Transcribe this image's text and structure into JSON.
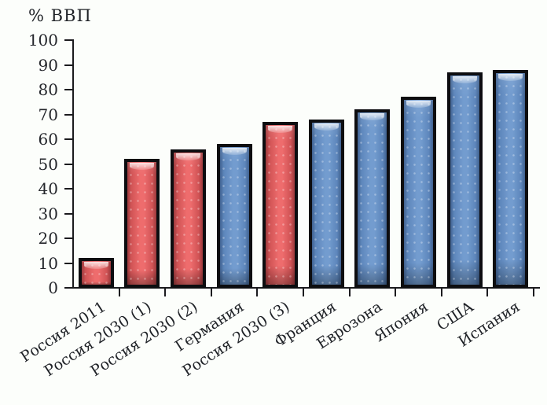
{
  "chart_data": {
    "type": "bar",
    "title": "% ВВП",
    "ylabel": "% ВВП",
    "xlabel": "",
    "categories": [
      "Россия 2011",
      "Россия 2030 (1)",
      "Россия 2030 (2)",
      "Германия",
      "Россия 2030 (3)",
      "Франция",
      "Еврозона",
      "Япония",
      "США",
      "Испания"
    ],
    "values": [
      12,
      52,
      56,
      58,
      67,
      68,
      72,
      77,
      87,
      88
    ],
    "bar_colors": [
      "red",
      "red",
      "red",
      "blue",
      "red",
      "blue",
      "blue",
      "blue",
      "blue",
      "blue"
    ],
    "yticks": [
      0,
      10,
      20,
      30,
      40,
      50,
      60,
      70,
      80,
      90,
      100
    ],
    "ylim": [
      0,
      100
    ],
    "grid": false,
    "legend_position": "none",
    "bar_style": "3d-glossy-beveled",
    "colors": {
      "red": "#e3595b",
      "blue": "#6b94ca",
      "outline": "#0d0d10",
      "axis": "#1b1b1e",
      "text": "#24262b",
      "background": "#fcfefb"
    }
  }
}
